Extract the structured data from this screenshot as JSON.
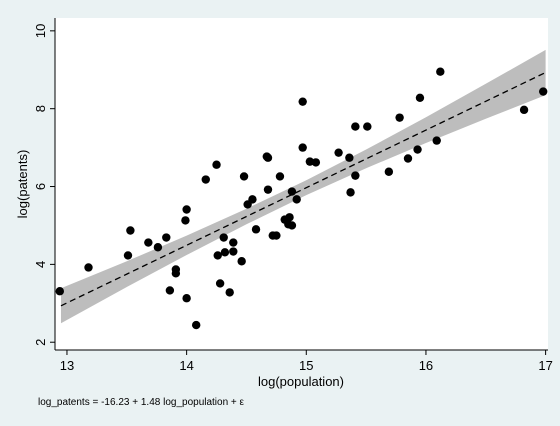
{
  "chart_data": {
    "type": "scatter",
    "xlabel": "log(population)",
    "ylabel": "log(patents)",
    "annotation": "log_patents =  -16.23 +   1.48 log_population + ε",
    "xlim": [
      12.9,
      17.02
    ],
    "ylim": [
      1.8,
      10.33
    ],
    "xticks": [
      13,
      14,
      15,
      16,
      17
    ],
    "yticks": [
      2,
      4,
      6,
      8,
      10
    ],
    "grid": false,
    "color": "#000000",
    "band_color": "#bdbdbd",
    "x": [
      12.94,
      13.18,
      13.51,
      13.53,
      13.68,
      13.76,
      13.83,
      13.86,
      13.91,
      13.91,
      13.99,
      14.0,
      14.0,
      14.08,
      14.16,
      14.25,
      14.26,
      14.28,
      14.31,
      14.32,
      14.36,
      14.39,
      14.39,
      14.46,
      14.48,
      14.51,
      14.55,
      14.58,
      14.67,
      14.68,
      14.68,
      14.72,
      14.75,
      14.78,
      14.82,
      14.85,
      14.86,
      14.88,
      14.88,
      14.92,
      14.97,
      14.97,
      15.03,
      15.08,
      15.27,
      15.36,
      15.37,
      15.41,
      15.41,
      15.51,
      15.69,
      15.78,
      15.85,
      15.93,
      15.95,
      16.09,
      16.12,
      16.82,
      16.98
    ],
    "values": [
      3.31,
      3.92,
      4.23,
      4.87,
      4.56,
      4.44,
      4.69,
      3.33,
      3.87,
      3.77,
      5.13,
      5.41,
      3.13,
      2.44,
      6.18,
      6.56,
      4.23,
      3.51,
      4.69,
      4.31,
      3.28,
      4.56,
      4.33,
      4.08,
      6.26,
      5.54,
      5.67,
      4.9,
      6.77,
      6.74,
      5.92,
      4.74,
      4.74,
      6.26,
      5.15,
      5.03,
      5.21,
      5.87,
      5.0,
      5.67,
      8.18,
      7.0,
      6.64,
      6.62,
      6.87,
      6.74,
      5.85,
      6.28,
      7.54,
      7.54,
      6.38,
      7.77,
      6.72,
      6.95,
      8.28,
      7.18,
      8.95,
      7.97,
      8.44
    ],
    "fit": {
      "x": [
        12.95,
        13.5,
        14,
        14.5,
        15,
        15.5,
        16,
        16.5,
        17
      ],
      "values": [
        2.936,
        3.75,
        4.49,
        5.23,
        5.97,
        6.71,
        7.45,
        8.19,
        8.93
      ],
      "lower": [
        2.486,
        3.42,
        4.24,
        5.03,
        5.78,
        6.47,
        7.12,
        7.74,
        8.35
      ],
      "upper": [
        3.386,
        4.08,
        4.74,
        5.43,
        6.16,
        6.95,
        7.78,
        8.64,
        9.51
      ]
    }
  }
}
